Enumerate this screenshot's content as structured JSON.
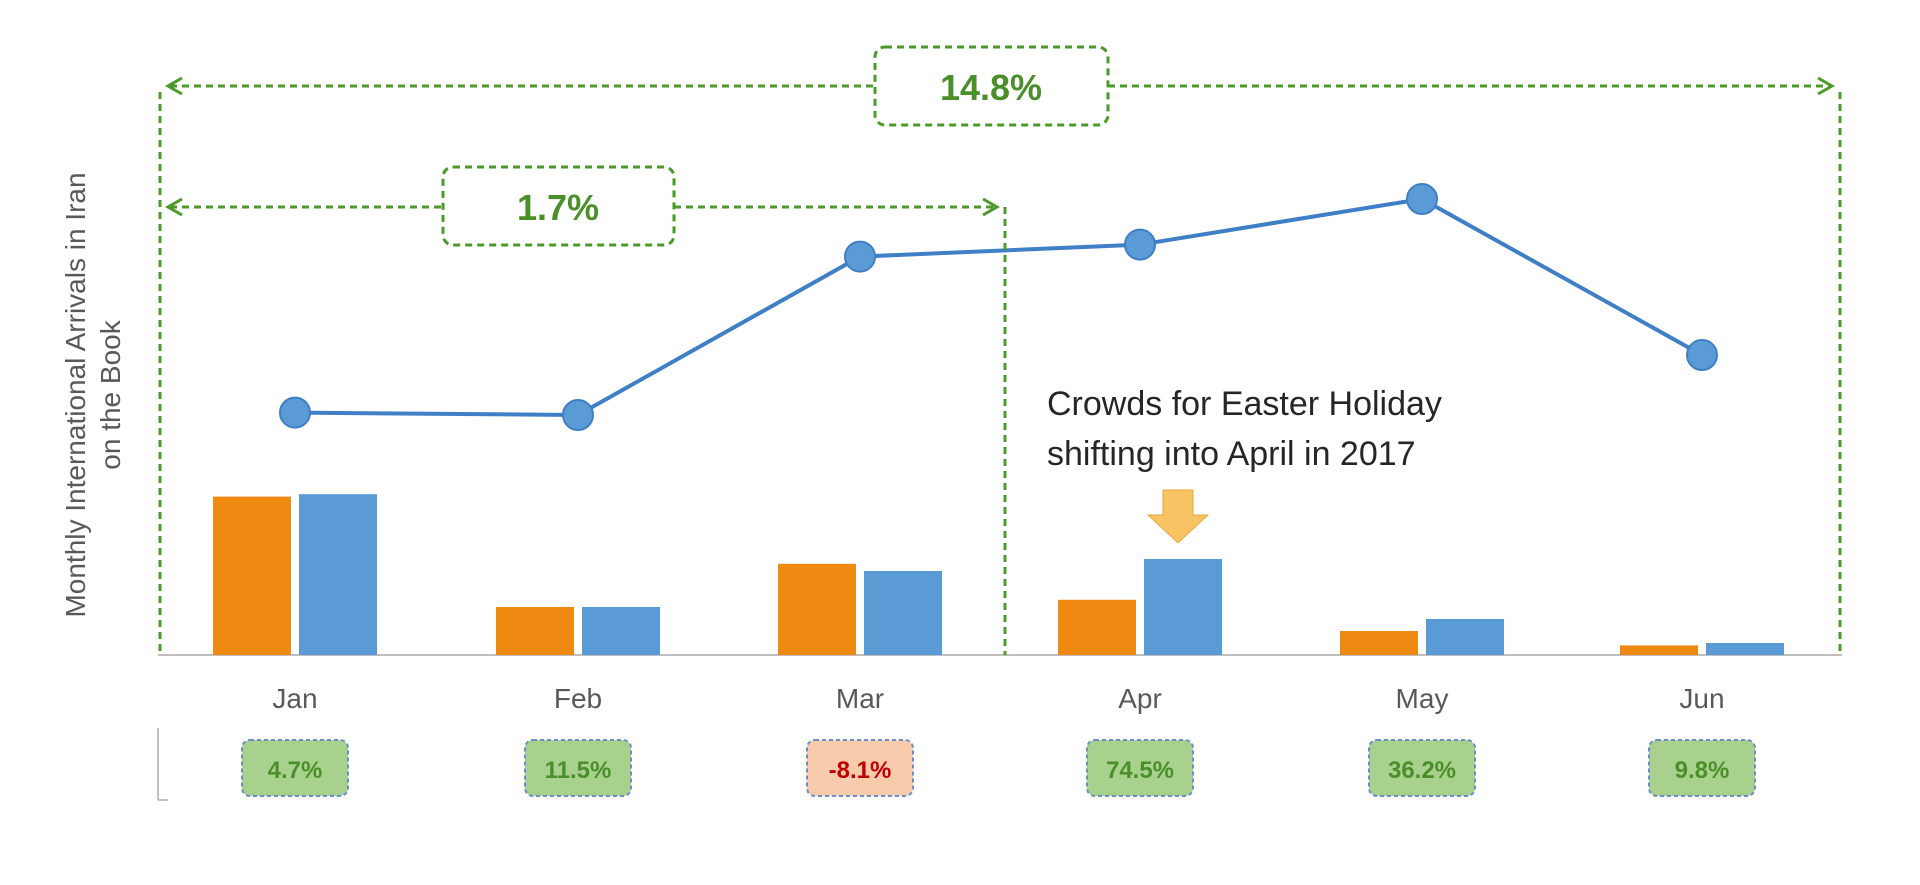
{
  "chart_data": {
    "type": "bar",
    "title": "",
    "xlabel": "",
    "ylabel": "Monthly International Arrivals in Iran on the Book",
    "ylabel_lines": [
      "Monthly International Arrivals in Iran",
      "on the Book"
    ],
    "categories": [
      "Jan",
      "Feb",
      "Mar",
      "Apr",
      "May",
      "Jun"
    ],
    "ylim": [
      0,
      100
    ],
    "series": [
      {
        "values": [
          33,
          10,
          19,
          11.5,
          5,
          2
        ],
        "color": "#ee8a12",
        "kind": "bar"
      },
      {
        "values": [
          33.5,
          10,
          17.5,
          20,
          7.5,
          2.5
        ],
        "color": "#5b9bd5",
        "kind": "bar"
      },
      {
        "values": [
          50.5,
          50,
          83,
          85.5,
          95,
          62.5
        ],
        "color": "#3f7fc6",
        "kind": "line"
      }
    ],
    "growth_labels": [
      {
        "text": "4.7%",
        "status": "positive"
      },
      {
        "text": "11.5%",
        "status": "positive"
      },
      {
        "text": "-8.1%",
        "status": "negative"
      },
      {
        "text": "74.5%",
        "status": "positive"
      },
      {
        "text": "36.2%",
        "status": "positive"
      },
      {
        "text": "9.8%",
        "status": "positive"
      }
    ],
    "range_annotations": [
      {
        "label": "14.8%",
        "from": "Jan",
        "to": "Jun"
      },
      {
        "label": "1.7%",
        "from": "Jan",
        "to": "Mar"
      }
    ],
    "annotation": {
      "lines": [
        "Crowds for Easter Holiday",
        "shifting into April in 2017"
      ],
      "target": "Apr",
      "arrow_color": "#f8c463"
    },
    "colors": {
      "accent_green": "#4a8f2a",
      "dash_green": "#4b9a2a",
      "positive_fill": "#a9d18e",
      "negative_fill": "#f8cbad",
      "negative_text": "#c00000",
      "axis": "#bfbfbf"
    }
  }
}
